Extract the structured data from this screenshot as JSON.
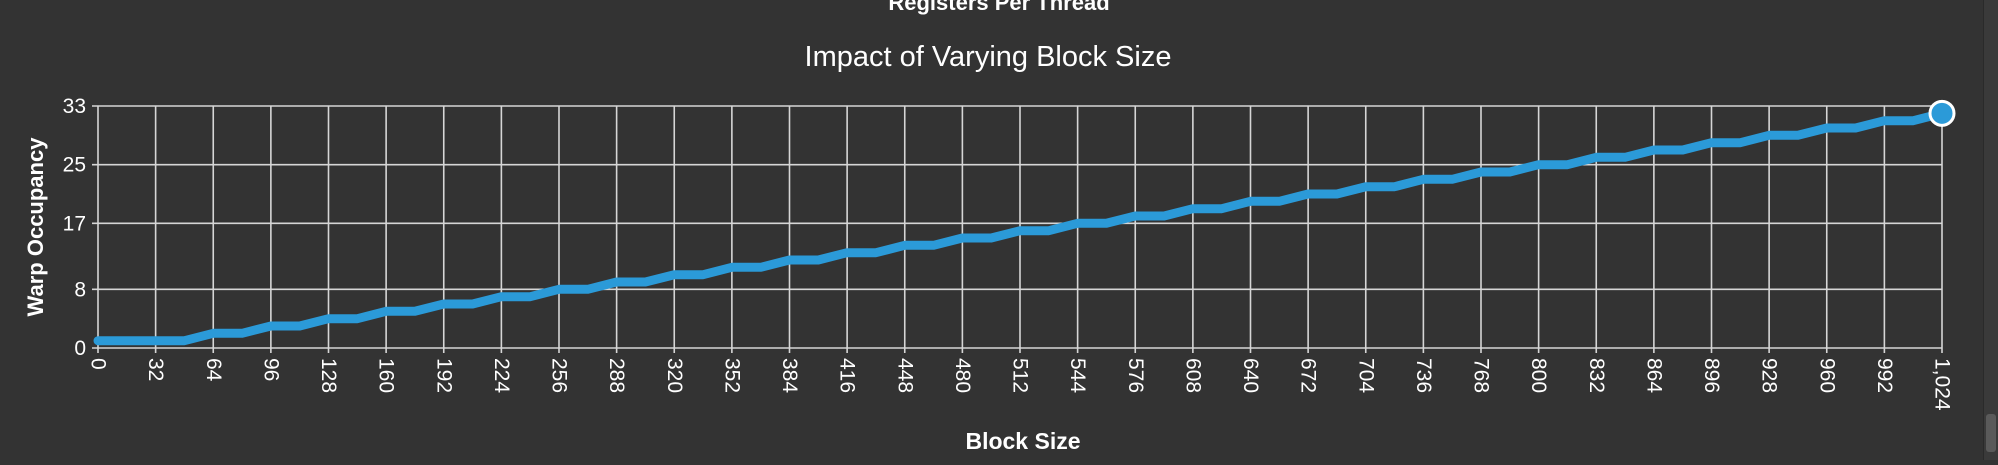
{
  "header": {
    "partial_title": "Registers Per Thread"
  },
  "chart_data": {
    "type": "line",
    "title": "Impact of Varying Block Size",
    "xlabel": "Block Size",
    "ylabel": "Warp Occupancy",
    "xlim": [
      0,
      1024
    ],
    "ylim": [
      0,
      33
    ],
    "x_ticks": [
      0,
      32,
      64,
      96,
      128,
      160,
      192,
      224,
      256,
      288,
      320,
      352,
      384,
      416,
      448,
      480,
      512,
      544,
      576,
      608,
      640,
      672,
      704,
      736,
      768,
      800,
      832,
      864,
      896,
      928,
      960,
      992,
      1024
    ],
    "x_tick_labels": [
      "0",
      "32",
      "64",
      "96",
      "128",
      "160",
      "192",
      "224",
      "256",
      "288",
      "320",
      "352",
      "384",
      "416",
      "448",
      "480",
      "512",
      "544",
      "576",
      "608",
      "640",
      "672",
      "704",
      "736",
      "768",
      "800",
      "832",
      "864",
      "896",
      "928",
      "960",
      "992",
      "1,024"
    ],
    "y_ticks": [
      0,
      8,
      17,
      25,
      33
    ],
    "y_tick_labels": [
      "0",
      "8",
      "17",
      "25",
      "33"
    ],
    "series": [
      {
        "name": "Warp Occupancy",
        "color": "#2b9ad8",
        "step_width": 32,
        "step_values": [
          1,
          1,
          2,
          3,
          4,
          5,
          6,
          7,
          8,
          9,
          10,
          11,
          12,
          13,
          14,
          15,
          16,
          17,
          18,
          19,
          20,
          21,
          22,
          23,
          24,
          25,
          26,
          27,
          28,
          29,
          30,
          31
        ],
        "final_point": [
          1024,
          32
        ]
      }
    ],
    "highlight_point": {
      "x": 1024,
      "y": 32
    },
    "grid": true
  },
  "colors": {
    "background": "#333333",
    "grid": "#d6d6d6",
    "line": "#2b9ad8",
    "text": "#ffffff"
  }
}
